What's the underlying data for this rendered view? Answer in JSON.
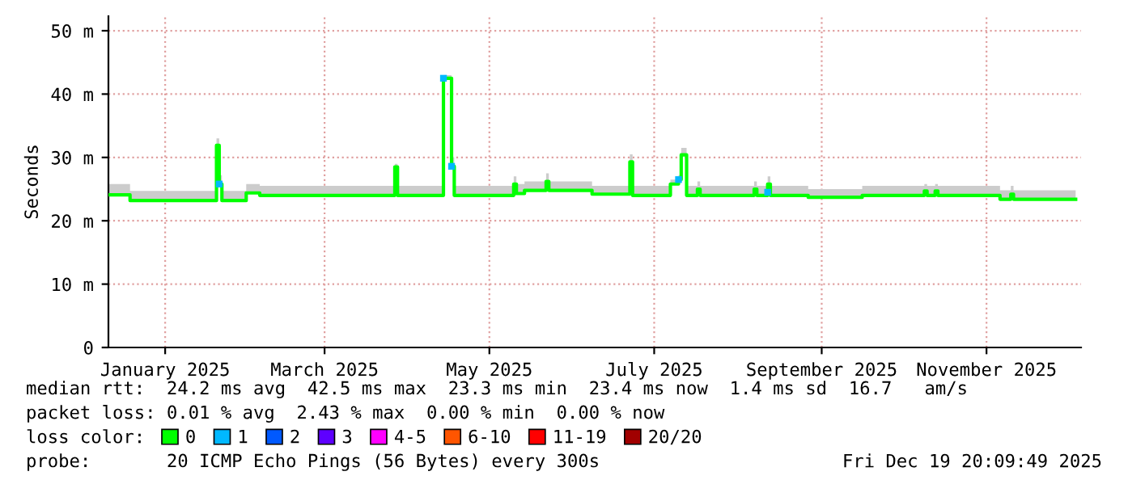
{
  "chart_data": {
    "type": "step",
    "ylabel": "Seconds",
    "x": [
      "2024-12-11",
      "2024-12-19",
      "2025-01-20",
      "2025-01-21",
      "2025-01-22",
      "2025-01-29",
      "2025-01-31",
      "2025-02-05",
      "2025-03-27",
      "2025-03-28",
      "2025-04-14",
      "2025-04-17",
      "2025-04-18",
      "2025-05-10",
      "2025-05-11",
      "2025-05-14",
      "2025-05-22",
      "2025-05-23",
      "2025-06-08",
      "2025-06-22",
      "2025-06-23",
      "2025-07-07",
      "2025-07-10",
      "2025-07-11",
      "2025-07-13",
      "2025-07-17",
      "2025-07-18",
      "2025-08-07",
      "2025-08-08",
      "2025-08-12",
      "2025-08-13",
      "2025-08-27",
      "2025-09-16",
      "2025-10-09",
      "2025-10-10",
      "2025-10-13",
      "2025-10-14",
      "2025-11-06",
      "2025-11-10",
      "2025-11-11",
      "2025-12-04"
    ],
    "series": [
      {
        "name": "0",
        "color": "#00ff00",
        "values": [
          24.1,
          23.2,
          31.9,
          25.8,
          23.2,
          23.2,
          24.4,
          24.0,
          28.5,
          24.0,
          42.5,
          28.6,
          24.0,
          25.8,
          24.3,
          24.8,
          26.2,
          24.8,
          24.2,
          29.3,
          24.0,
          25.8,
          26.5,
          30.4,
          24.0,
          25.0,
          24.0,
          25.0,
          24.0,
          25.8,
          24.0,
          23.7,
          24.0,
          24.7,
          24.0,
          24.7,
          24.0,
          23.4,
          24.2,
          23.4,
          23.4
        ],
        "lower": [
          24.1,
          23.2,
          31.9,
          25.8,
          23.2,
          23.2,
          24.4,
          24.0,
          28.5,
          24.0,
          42.5,
          28.6,
          24.0,
          25.8,
          24.3,
          24.8,
          26.2,
          24.8,
          24.2,
          29.3,
          24.0,
          25.8,
          26.5,
          30.4,
          24.0,
          25.0,
          24.0,
          25.0,
          24.0,
          25.8,
          24.0,
          23.7,
          24.0,
          24.7,
          24.0,
          24.7,
          24.0,
          23.4,
          24.2,
          23.4,
          23.4
        ],
        "upper": [
          25.8,
          24.7,
          33.0,
          27.2,
          24.7,
          24.7,
          25.8,
          25.5,
          29.0,
          25.5,
          43.0,
          30.0,
          25.5,
          27.0,
          25.8,
          26.2,
          27.5,
          26.2,
          25.5,
          30.5,
          25.5,
          26.5,
          27.2,
          31.5,
          25.5,
          26.2,
          25.5,
          26.2,
          25.5,
          27.0,
          25.5,
          25.0,
          25.5,
          25.8,
          25.5,
          25.8,
          25.5,
          24.8,
          25.5,
          24.8,
          24.8
        ]
      },
      {
        "name": "1",
        "color": "#00b8ff",
        "type": "scatter",
        "marker": "square",
        "x": [
          "2025-01-21",
          "2025-04-14",
          "2025-04-17",
          "2025-07-10",
          "2025-08-12"
        ],
        "values": [
          25.8,
          42.5,
          28.6,
          26.5,
          24.5
        ]
      },
      {
        "name": "2",
        "color": "#0059ff",
        "values": [
          null,
          null,
          null,
          null,
          null,
          null,
          null,
          null,
          null,
          null,
          null,
          null,
          null,
          null,
          null,
          null,
          null,
          null,
          null,
          null,
          null,
          null,
          null,
          null,
          null,
          null,
          null,
          null,
          null,
          null,
          null,
          null,
          null,
          null,
          null,
          null,
          null,
          null,
          null,
          null,
          null
        ]
      },
      {
        "name": "3",
        "color": "#5e00ff",
        "values": [
          null,
          null,
          null,
          null,
          null,
          null,
          null,
          null,
          null,
          null,
          null,
          null,
          null,
          null,
          null,
          null,
          null,
          null,
          null,
          null,
          null,
          null,
          null,
          null,
          null,
          null,
          null,
          null,
          null,
          null,
          null,
          null,
          null,
          null,
          null,
          null,
          null,
          null,
          null,
          null,
          null
        ]
      },
      {
        "name": "4-5",
        "color": "#ff00ff",
        "values": [
          null,
          null,
          null,
          null,
          null,
          null,
          null,
          null,
          null,
          null,
          null,
          null,
          null,
          null,
          null,
          null,
          null,
          null,
          null,
          null,
          null,
          null,
          null,
          null,
          null,
          null,
          null,
          null,
          null,
          null,
          null,
          null,
          null,
          null,
          null,
          null,
          null,
          null,
          null,
          null,
          null
        ]
      },
      {
        "name": "6-10",
        "color": "#ff5500",
        "values": [
          null,
          null,
          null,
          null,
          null,
          null,
          null,
          null,
          null,
          null,
          null,
          null,
          null,
          null,
          null,
          null,
          null,
          null,
          null,
          null,
          null,
          null,
          null,
          null,
          null,
          null,
          null,
          null,
          null,
          null,
          null,
          null,
          null,
          null,
          null,
          null,
          null,
          null,
          null,
          null,
          null
        ]
      },
      {
        "name": "11-19",
        "color": "#ff0000",
        "values": [
          null,
          null,
          null,
          null,
          null,
          null,
          null,
          null,
          null,
          null,
          null,
          null,
          null,
          null,
          null,
          null,
          null,
          null,
          null,
          null,
          null,
          null,
          null,
          null,
          null,
          null,
          null,
          null,
          null,
          null,
          null,
          null,
          null,
          null,
          null,
          null,
          null,
          null,
          null,
          null,
          null
        ]
      },
      {
        "name": "20/20",
        "color": "#a10000",
        "values": [
          null,
          null,
          null,
          null,
          null,
          null,
          null,
          null,
          null,
          null,
          null,
          null,
          null,
          null,
          null,
          null,
          null,
          null,
          null,
          null,
          null,
          null,
          null,
          null,
          null,
          null,
          null,
          null,
          null,
          null,
          null,
          null,
          null,
          null,
          null,
          null,
          null,
          null,
          null,
          null,
          null
        ]
      }
    ],
    "legend_title": "loss color:",
    "legend": "bottom",
    "ylim": [
      0,
      52.3
    ],
    "yticks": [
      0,
      {
        "value": 10,
        "label": "10 m"
      },
      {
        "value": 20,
        "label": "20 m"
      },
      {
        "value": 30,
        "label": "30 m"
      },
      {
        "value": 40,
        "label": "40 m"
      },
      {
        "value": 50,
        "label": "50 m"
      }
    ],
    "xlim": [
      "2024-12-11",
      "2025-12-06"
    ],
    "xticks": [
      {
        "value": "2025-01-01",
        "label": "January 2025"
      },
      {
        "value": "2025-03-01",
        "label": "March 2025"
      },
      {
        "value": "2025-05-01",
        "label": "May 2025"
      },
      {
        "value": "2025-07-01",
        "label": "July 2025"
      },
      {
        "value": "2025-09-01",
        "label": "September 2025"
      },
      {
        "value": "2025-11-01",
        "label": "November 2025"
      }
    ],
    "grid": true,
    "annotations": [
      "median rtt:  24.2 ms avg  42.5 ms max  23.3 ms min  23.4 ms now  1.4 ms sd  16.7   am/s",
      "packet loss: 0.01 % avg  2.43 % max  0.00 % min  0.00 % now",
      "probe:       20 ICMP Echo Pings (56 Bytes) every 300s",
      "Fri Dec 19 20:09:49 2025"
    ]
  }
}
